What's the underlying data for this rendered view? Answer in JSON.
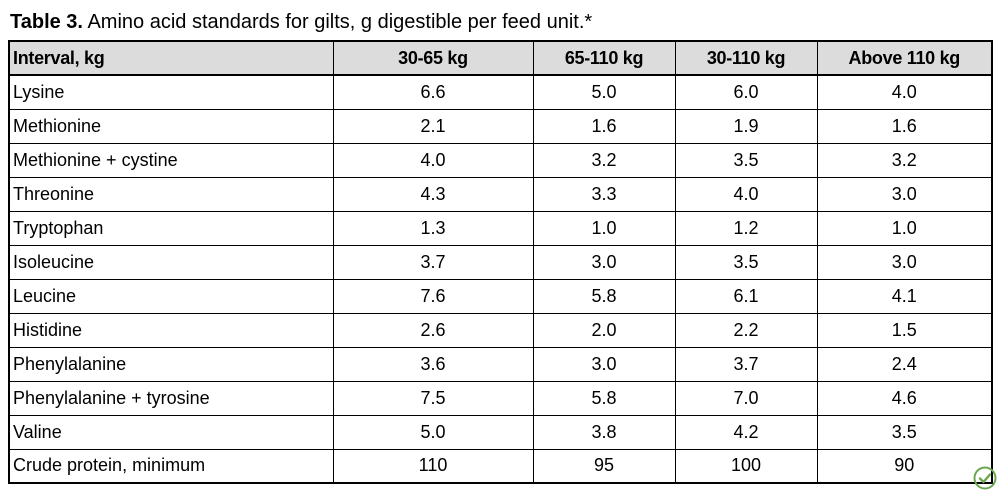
{
  "caption": {
    "lead": "Table 3.",
    "text": " Amino acid standards for gilts, g digestible per feed unit.*"
  },
  "table": {
    "headers": [
      "Interval, kg",
      "30-65 kg",
      "65-110 kg",
      "30-110 kg",
      "Above 110 kg"
    ],
    "rows": [
      [
        "Lysine",
        "6.6",
        "5.0",
        "6.0",
        "4.0"
      ],
      [
        "Methionine",
        "2.1",
        "1.6",
        "1.9",
        "1.6"
      ],
      [
        "Methionine + cystine",
        "4.0",
        "3.2",
        "3.5",
        "3.2"
      ],
      [
        "Threonine",
        "4.3",
        "3.3",
        "4.0",
        "3.0"
      ],
      [
        "Tryptophan",
        "1.3",
        "1.0",
        "1.2",
        "1.0"
      ],
      [
        "Isoleucine",
        "3.7",
        "3.0",
        "3.5",
        "3.0"
      ],
      [
        "Leucine",
        "7.6",
        "5.8",
        "6.1",
        "4.1"
      ],
      [
        "Histidine",
        "2.6",
        "2.0",
        "2.2",
        "1.5"
      ],
      [
        "Phenylalanine",
        "3.6",
        "3.0",
        "3.7",
        "2.4"
      ],
      [
        "Phenylalanine + tyrosine",
        "7.5",
        "5.8",
        "7.0",
        "4.6"
      ],
      [
        "Valine",
        "5.0",
        "3.8",
        "4.2",
        "3.5"
      ],
      [
        "Crude protein, minimum",
        "110",
        "95",
        "100",
        "90"
      ]
    ]
  },
  "badge": {
    "icon": "check-leaf-icon",
    "color": "#6aa84f"
  }
}
